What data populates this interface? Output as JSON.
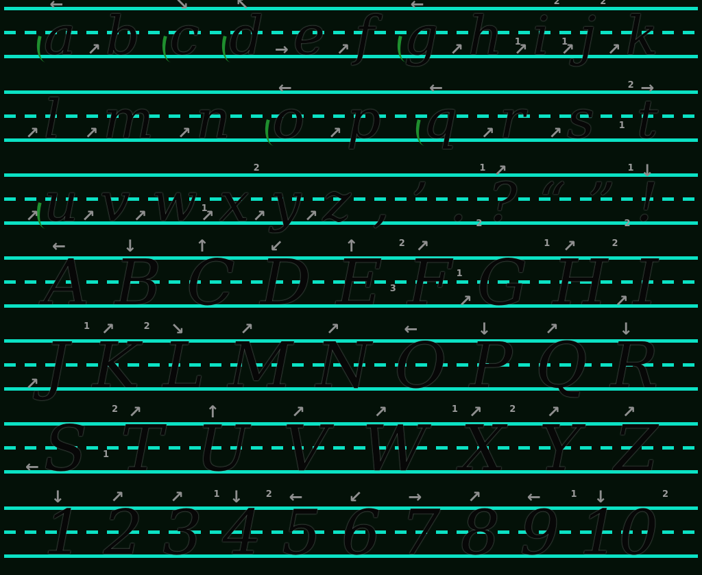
{
  "colors": {
    "background": "#041108",
    "guide_line": "#0be2c4",
    "letter": "#070707",
    "arrow": "#8f8f8f",
    "marker": "#9b9b9b",
    "leadin_stroke": "#1f8f2e"
  },
  "rows": [
    {
      "name": "lowercase-a-k",
      "case": "lower",
      "glyphs": [
        {
          "name": "a",
          "ch": "a",
          "leadin": true,
          "arrow": {
            "dir": "←",
            "pos": "top"
          }
        },
        {
          "name": "b",
          "ch": "b",
          "arrow": {
            "dir": "↗",
            "pos": "start"
          }
        },
        {
          "name": "c",
          "ch": "c",
          "leadin": true,
          "arrow": {
            "dir": "↘",
            "pos": "top"
          }
        },
        {
          "name": "d",
          "ch": "d",
          "leadin": true,
          "arrow": {
            "dir": "↖",
            "pos": "top"
          }
        },
        {
          "name": "e",
          "ch": "e",
          "arrow": {
            "dir": "→",
            "pos": "start"
          }
        },
        {
          "name": "f",
          "ch": "f",
          "arrow": {
            "dir": "↗",
            "pos": "start"
          }
        },
        {
          "name": "g",
          "ch": "g",
          "leadin": true,
          "arrow": {
            "dir": "←",
            "pos": "top"
          }
        },
        {
          "name": "h",
          "ch": "h",
          "arrow": {
            "dir": "↗",
            "pos": "start"
          }
        },
        {
          "name": "i",
          "ch": "i",
          "arrow": {
            "dir": "↗",
            "pos": "start"
          },
          "markers": [
            {
              "n": "1",
              "pos": "l"
            },
            {
              "n": "2",
              "pos": "tr"
            }
          ]
        },
        {
          "name": "j",
          "ch": "j",
          "arrow": {
            "dir": "↗",
            "pos": "start"
          },
          "markers": [
            {
              "n": "1",
              "pos": "l"
            },
            {
              "n": "2",
              "pos": "tr"
            }
          ]
        },
        {
          "name": "k",
          "ch": "k",
          "arrow": {
            "dir": "↗",
            "pos": "start"
          }
        }
      ]
    },
    {
      "name": "lowercase-l-t",
      "case": "lower",
      "glyphs": [
        {
          "name": "l",
          "ch": "l",
          "arrow": {
            "dir": "↗",
            "pos": "start"
          }
        },
        {
          "name": "m",
          "ch": "m",
          "arrow": {
            "dir": "↗",
            "pos": "start"
          }
        },
        {
          "name": "n",
          "ch": "n",
          "arrow": {
            "dir": "↗",
            "pos": "start"
          }
        },
        {
          "name": "o",
          "ch": "o",
          "leadin": true,
          "arrow": {
            "dir": "←",
            "pos": "top"
          }
        },
        {
          "name": "p",
          "ch": "p",
          "arrow": {
            "dir": "↗",
            "pos": "start"
          }
        },
        {
          "name": "q",
          "ch": "q",
          "leadin": true,
          "arrow": {
            "dir": "←",
            "pos": "top"
          }
        },
        {
          "name": "r",
          "ch": "r",
          "arrow": {
            "dir": "↗",
            "pos": "start"
          }
        },
        {
          "name": "s",
          "ch": "s",
          "arrow": {
            "dir": "↗",
            "pos": "start"
          }
        },
        {
          "name": "t",
          "ch": "t",
          "arrow": {
            "dir": "→",
            "pos": "top"
          },
          "markers": [
            {
              "n": "1",
              "pos": "l"
            },
            {
              "n": "2",
              "pos": "tl"
            }
          ]
        }
      ]
    },
    {
      "name": "lowercase-u-z-punctuation",
      "case": "lower",
      "glyphs": [
        {
          "name": "u",
          "ch": "u",
          "leadin": true,
          "arrow": {
            "dir": "↗",
            "pos": "start"
          }
        },
        {
          "name": "v",
          "ch": "v",
          "arrow": {
            "dir": "↗",
            "pos": "start"
          }
        },
        {
          "name": "w",
          "ch": "w",
          "arrow": {
            "dir": "↗",
            "pos": "start"
          }
        },
        {
          "name": "x",
          "ch": "x",
          "arrow": {
            "dir": "↗",
            "pos": "start"
          },
          "markers": [
            {
              "n": "1",
              "pos": "l"
            },
            {
              "n": "2",
              "pos": "tr"
            }
          ]
        },
        {
          "name": "y",
          "ch": "y",
          "arrow": {
            "dir": "↗",
            "pos": "start"
          }
        },
        {
          "name": "z",
          "ch": "z",
          "arrow": {
            "dir": "↗",
            "pos": "start"
          }
        },
        {
          "name": "comma",
          "ch": ","
        },
        {
          "name": "apostrophe",
          "ch": "’"
        },
        {
          "name": "period",
          "ch": "."
        },
        {
          "name": "question-mark",
          "ch": "?",
          "arrow": {
            "dir": "↗",
            "pos": "top"
          },
          "markers": [
            {
              "n": "1",
              "pos": "tl"
            },
            {
              "n": "2",
              "pos": "bl"
            }
          ]
        },
        {
          "name": "open-quote",
          "ch": "“"
        },
        {
          "name": "close-quote",
          "ch": "”"
        },
        {
          "name": "exclamation-mark",
          "ch": "!",
          "arrow": {
            "dir": "↓",
            "pos": "top"
          },
          "markers": [
            {
              "n": "1",
              "pos": "tl"
            },
            {
              "n": "2",
              "pos": "bl"
            }
          ]
        }
      ]
    },
    {
      "name": "uppercase-A-I",
      "case": "upper",
      "glyphs": [
        {
          "name": "cap-a",
          "ch": "A",
          "arrow": {
            "dir": "←",
            "pos": "top"
          }
        },
        {
          "name": "cap-b",
          "ch": "B",
          "arrow": {
            "dir": "↓",
            "pos": "top"
          }
        },
        {
          "name": "cap-c",
          "ch": "C",
          "arrow": {
            "dir": "↑",
            "pos": "top"
          }
        },
        {
          "name": "cap-d",
          "ch": "D",
          "arrow": {
            "dir": "↙",
            "pos": "top"
          }
        },
        {
          "name": "cap-e",
          "ch": "E",
          "arrow": {
            "dir": "↑",
            "pos": "top"
          }
        },
        {
          "name": "cap-f",
          "ch": "F",
          "arrow": {
            "dir": "↗",
            "pos": "top"
          },
          "markers": [
            {
              "n": "2",
              "pos": "tl"
            },
            {
              "n": "1",
              "pos": "r"
            },
            {
              "n": "3",
              "pos": "l"
            }
          ]
        },
        {
          "name": "cap-g",
          "ch": "G",
          "arrow": {
            "dir": "↗",
            "pos": "start"
          }
        },
        {
          "name": "cap-h",
          "ch": "H",
          "arrow": {
            "dir": "↗",
            "pos": "top"
          },
          "markers": [
            {
              "n": "1",
              "pos": "tl"
            },
            {
              "n": "2",
              "pos": "tr"
            }
          ]
        },
        {
          "name": "cap-i",
          "ch": "I",
          "arrow": {
            "dir": "↗",
            "pos": "start"
          }
        }
      ]
    },
    {
      "name": "uppercase-J-R",
      "case": "upper",
      "glyphs": [
        {
          "name": "cap-j",
          "ch": "J",
          "arrow": {
            "dir": "↗",
            "pos": "start"
          }
        },
        {
          "name": "cap-k",
          "ch": "K",
          "arrow": {
            "dir": "↗",
            "pos": "top"
          },
          "markers": [
            {
              "n": "1",
              "pos": "tl"
            },
            {
              "n": "2",
              "pos": "tr"
            }
          ]
        },
        {
          "name": "cap-l",
          "ch": "L",
          "arrow": {
            "dir": "↘",
            "pos": "top"
          }
        },
        {
          "name": "cap-m",
          "ch": "M",
          "arrow": {
            "dir": "↗",
            "pos": "top"
          }
        },
        {
          "name": "cap-n",
          "ch": "N",
          "arrow": {
            "dir": "↗",
            "pos": "top"
          }
        },
        {
          "name": "cap-o",
          "ch": "O",
          "arrow": {
            "dir": "←",
            "pos": "top"
          }
        },
        {
          "name": "cap-p",
          "ch": "P",
          "arrow": {
            "dir": "↓",
            "pos": "top"
          }
        },
        {
          "name": "cap-q",
          "ch": "Q",
          "arrow": {
            "dir": "↗",
            "pos": "top"
          }
        },
        {
          "name": "cap-r",
          "ch": "R",
          "arrow": {
            "dir": "↓",
            "pos": "top"
          }
        }
      ]
    },
    {
      "name": "uppercase-S-Z",
      "case": "upper",
      "glyphs": [
        {
          "name": "cap-s",
          "ch": "S",
          "arrow": {
            "dir": "←",
            "pos": "start"
          }
        },
        {
          "name": "cap-t",
          "ch": "T",
          "arrow": {
            "dir": "↗",
            "pos": "top"
          },
          "markers": [
            {
              "n": "2",
              "pos": "tl"
            },
            {
              "n": "1",
              "pos": "l"
            }
          ]
        },
        {
          "name": "cap-u",
          "ch": "U",
          "arrow": {
            "dir": "↑",
            "pos": "top"
          }
        },
        {
          "name": "cap-v",
          "ch": "V",
          "arrow": {
            "dir": "↗",
            "pos": "top"
          }
        },
        {
          "name": "cap-w",
          "ch": "W",
          "arrow": {
            "dir": "↗",
            "pos": "top"
          }
        },
        {
          "name": "cap-x",
          "ch": "X",
          "arrow": {
            "dir": "↗",
            "pos": "top"
          },
          "markers": [
            {
              "n": "1",
              "pos": "tl"
            },
            {
              "n": "2",
              "pos": "tr"
            }
          ]
        },
        {
          "name": "cap-y",
          "ch": "Y",
          "arrow": {
            "dir": "↗",
            "pos": "top"
          }
        },
        {
          "name": "cap-z",
          "ch": "Z",
          "arrow": {
            "dir": "↗",
            "pos": "top"
          }
        }
      ]
    },
    {
      "name": "numbers-1-10",
      "case": "number",
      "glyphs": [
        {
          "name": "digit-1",
          "ch": "1",
          "arrow": {
            "dir": "↓",
            "pos": "top"
          }
        },
        {
          "name": "digit-2",
          "ch": "2",
          "arrow": {
            "dir": "↗",
            "pos": "top"
          }
        },
        {
          "name": "digit-3",
          "ch": "3",
          "arrow": {
            "dir": "↗",
            "pos": "top"
          }
        },
        {
          "name": "digit-4",
          "ch": "4",
          "arrow": {
            "dir": "↓",
            "pos": "top"
          },
          "markers": [
            {
              "n": "1",
              "pos": "tl"
            },
            {
              "n": "2",
              "pos": "tr"
            }
          ]
        },
        {
          "name": "digit-5",
          "ch": "5",
          "arrow": {
            "dir": "←",
            "pos": "top"
          }
        },
        {
          "name": "digit-6",
          "ch": "6",
          "arrow": {
            "dir": "↙",
            "pos": "top"
          }
        },
        {
          "name": "digit-7",
          "ch": "7",
          "arrow": {
            "dir": "→",
            "pos": "top"
          }
        },
        {
          "name": "digit-8",
          "ch": "8",
          "arrow": {
            "dir": "↗",
            "pos": "top"
          }
        },
        {
          "name": "digit-9",
          "ch": "9",
          "arrow": {
            "dir": "←",
            "pos": "top"
          }
        },
        {
          "name": "number-10",
          "ch": "10",
          "arrow": {
            "dir": "↓",
            "pos": "top"
          },
          "markers": [
            {
              "n": "1",
              "pos": "tl"
            },
            {
              "n": "2",
              "pos": "tr"
            }
          ]
        }
      ]
    }
  ]
}
